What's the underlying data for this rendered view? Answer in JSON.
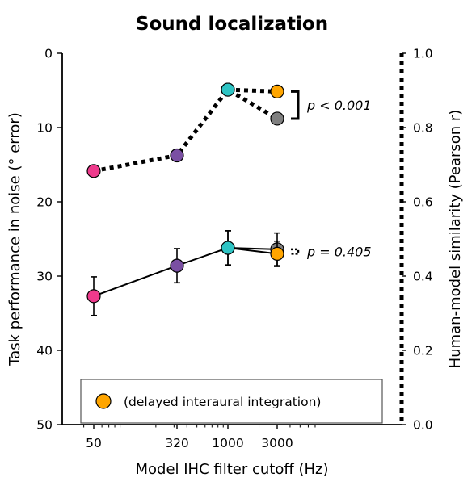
{
  "chart_data": {
    "type": "line",
    "title": "Sound localization",
    "xlabel": "Model IHC filter cutoff (Hz)",
    "ylabel_left": "Task performance in noise (° error)",
    "ylabel_right": "Human-model similarity (Pearson r)",
    "x_scale": "log",
    "x_ticks": [
      50,
      320,
      1000,
      3000
    ],
    "x_tick_labels": [
      "50",
      "320",
      "1000",
      "3000"
    ],
    "ylim_left": [
      0,
      50
    ],
    "y_left_inverted": true,
    "y_left_ticks": [
      0,
      10,
      20,
      30,
      40,
      50
    ],
    "y_left_tick_labels": [
      "0",
      "10",
      "20",
      "30",
      "40",
      "50"
    ],
    "ylim_right": [
      0.0,
      1.0
    ],
    "y_right_ticks": [
      0.0,
      0.2,
      0.4,
      0.6,
      0.8,
      1.0
    ],
    "y_right_tick_labels": [
      "0.0",
      "0.2",
      "0.4",
      "0.6",
      "0.8",
      "1.0"
    ],
    "grid": false,
    "legend_position": "bottom",
    "colors": {
      "50": "#ee3a8c",
      "320": "#7a4fa3",
      "1000": "#2ec4c4",
      "3000_standard": "#7f7f7f",
      "3000_delayed": "#ffa500",
      "line": "#000000"
    },
    "series": [
      {
        "axis": "right",
        "line_style": "dotted",
        "points": [
          {
            "x": 50,
            "y": 0.683,
            "err": 0.01,
            "color_key": "50"
          },
          {
            "x": 320,
            "y": 0.725,
            "err": 0.012,
            "color_key": "320"
          },
          {
            "x": 1000,
            "y": 0.902,
            "err": 0.008,
            "color_key": "1000"
          },
          {
            "x": 3000,
            "y": 0.824,
            "err": 0.012,
            "color_key": "3000_standard"
          }
        ]
      },
      {
        "axis": "right",
        "line_style": "dotted",
        "points": [
          {
            "x": 1000,
            "y": 0.902,
            "err": 0.008,
            "color_key": "1000"
          },
          {
            "x": 3000,
            "y": 0.897,
            "err": 0.015,
            "color_key": "3000_delayed"
          }
        ]
      },
      {
        "axis": "left",
        "line_style": "solid",
        "points": [
          {
            "x": 50,
            "y": 32.7,
            "err": 2.6,
            "color_key": "50"
          },
          {
            "x": 320,
            "y": 28.6,
            "err": 2.3,
            "color_key": "320"
          },
          {
            "x": 1000,
            "y": 26.2,
            "err": 2.3,
            "color_key": "1000"
          },
          {
            "x": 3000,
            "y": 26.4,
            "err": 2.2,
            "color_key": "3000_standard"
          }
        ]
      },
      {
        "axis": "left",
        "line_style": "solid",
        "points": [
          {
            "x": 1000,
            "y": 26.2,
            "err": 2.3,
            "color_key": "1000"
          },
          {
            "x": 3000,
            "y": 27.0,
            "err": 1.7,
            "color_key": "3000_delayed"
          }
        ]
      }
    ],
    "annotations": [
      {
        "text": "p < 0.001",
        "axis": "right",
        "y_range": [
          0.824,
          0.897
        ]
      },
      {
        "text": "p = 0.405",
        "axis": "left",
        "y_range": [
          26.4,
          27.0
        ]
      }
    ],
    "legend": [
      {
        "label": "(delayed interaural integration)",
        "color_key": "3000_delayed"
      }
    ]
  }
}
